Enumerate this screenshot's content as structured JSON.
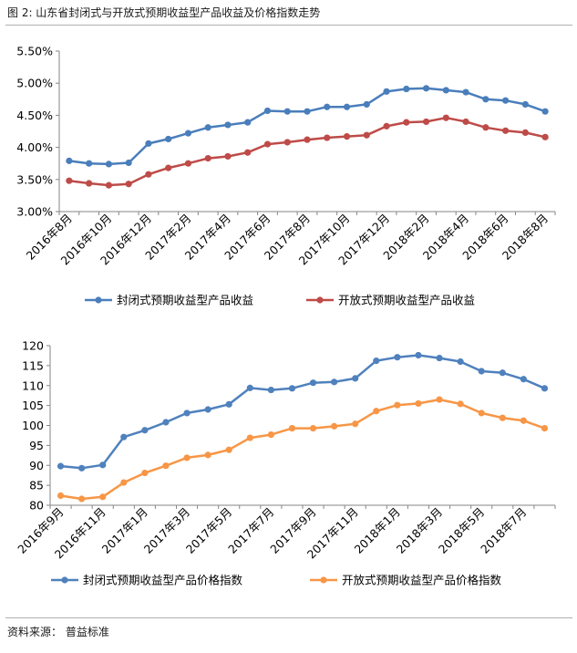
{
  "header": {
    "title": "图 2:  山东省封闭式与开放式预期收益型产品收益及价格指数走势"
  },
  "footer": {
    "source": "资料来源：  普益标准"
  },
  "colors": {
    "blue": "#4a7ebb",
    "red": "#be4b48",
    "blue_light": "#4f81bd",
    "orange": "#f79646",
    "axis": "#868686",
    "text": "#000000"
  },
  "chart_data": [
    {
      "type": "line",
      "title": "",
      "xlabel": "",
      "ylabel": "",
      "ylim": [
        0.03,
        0.055
      ],
      "yticks": [
        "3.00%",
        "3.50%",
        "4.00%",
        "4.50%",
        "5.00%",
        "5.50%"
      ],
      "ytick_values": [
        0.03,
        0.035,
        0.04,
        0.045,
        0.05,
        0.055
      ],
      "x_count": 25,
      "x_tick_labels": [
        {
          "index": 0,
          "label": "2016年8月"
        },
        {
          "index": 2,
          "label": "2016年10月"
        },
        {
          "index": 4,
          "label": "2016年12月"
        },
        {
          "index": 6,
          "label": "2017年2月"
        },
        {
          "index": 8,
          "label": "2017年4月"
        },
        {
          "index": 10,
          "label": "2017年6月"
        },
        {
          "index": 12,
          "label": "2017年8月"
        },
        {
          "index": 14,
          "label": "2017年10月"
        },
        {
          "index": 16,
          "label": "2017年12月"
        },
        {
          "index": 18,
          "label": "2018年2月"
        },
        {
          "index": 20,
          "label": "2018年4月"
        },
        {
          "index": 22,
          "label": "2018年6月"
        },
        {
          "index": 24,
          "label": "2018年8月"
        }
      ],
      "series": [
        {
          "name": "封闭式预期收益型产品收益",
          "color": "#4a7ebb",
          "values": [
            0.0379,
            0.0375,
            0.0374,
            0.0376,
            0.0406,
            0.0413,
            0.0422,
            0.0431,
            0.0435,
            0.0439,
            0.0457,
            0.0456,
            0.0456,
            0.0463,
            0.0463,
            0.0467,
            0.0487,
            0.0491,
            0.0492,
            0.0489,
            0.0486,
            0.0475,
            0.0473,
            0.0467,
            0.0456
          ]
        },
        {
          "name": "开放式预期收益型产品收益",
          "color": "#be4b48",
          "values": [
            0.0348,
            0.0344,
            0.0341,
            0.0343,
            0.0358,
            0.0368,
            0.0375,
            0.0383,
            0.0386,
            0.0392,
            0.0405,
            0.0408,
            0.0412,
            0.0415,
            0.0417,
            0.0419,
            0.0433,
            0.0439,
            0.044,
            0.0446,
            0.044,
            0.0431,
            0.0426,
            0.0423,
            0.0416
          ]
        }
      ],
      "legend": "bottom"
    },
    {
      "type": "line",
      "title": "",
      "xlabel": "",
      "ylabel": "",
      "ylim": [
        80,
        120
      ],
      "yticks": [
        "80",
        "85",
        "90",
        "95",
        "100",
        "105",
        "110",
        "115",
        "120"
      ],
      "ytick_values": [
        80,
        85,
        90,
        95,
        100,
        105,
        110,
        115,
        120
      ],
      "x_count": 24,
      "x_tick_labels": [
        {
          "index": 0,
          "label": "2016年9月"
        },
        {
          "index": 2,
          "label": "2016年11月"
        },
        {
          "index": 4,
          "label": "2017年1月"
        },
        {
          "index": 6,
          "label": "2017年3月"
        },
        {
          "index": 8,
          "label": "2017年5月"
        },
        {
          "index": 10,
          "label": "2017年7月"
        },
        {
          "index": 12,
          "label": "2017年9月"
        },
        {
          "index": 14,
          "label": "2017年11月"
        },
        {
          "index": 16,
          "label": "2018年1月"
        },
        {
          "index": 18,
          "label": "2018年3月"
        },
        {
          "index": 20,
          "label": "2018年5月"
        },
        {
          "index": 22,
          "label": "2018年7月"
        }
      ],
      "series": [
        {
          "name": "封闭式预期收益型产品价格指数",
          "color": "#4f81bd",
          "values": [
            89.8,
            89.3,
            90.1,
            97.1,
            98.8,
            100.8,
            103.1,
            104.0,
            105.3,
            109.4,
            108.9,
            109.3,
            110.7,
            110.9,
            111.8,
            116.2,
            117.1,
            117.6,
            116.9,
            116.0,
            113.6,
            113.2,
            111.6,
            109.3
          ]
        },
        {
          "name": "开放式预期收益型产品价格指数",
          "color": "#f79646",
          "values": [
            82.4,
            81.6,
            82.1,
            85.7,
            88.1,
            89.9,
            91.9,
            92.6,
            93.9,
            96.9,
            97.7,
            99.3,
            99.3,
            99.8,
            100.4,
            103.6,
            105.1,
            105.5,
            106.5,
            105.4,
            103.1,
            101.9,
            101.2,
            99.3
          ]
        }
      ],
      "legend": "bottom"
    }
  ]
}
